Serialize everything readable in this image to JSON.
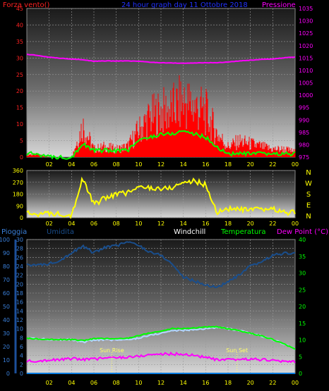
{
  "header": {
    "left": "Forza vento()",
    "center": "24 hour graph day  11 Ottobre 2018",
    "right": "Pressione"
  },
  "colors": {
    "wind": "#ff0000",
    "gust_fill": "#ff0000",
    "wind_avg": "#00ff00",
    "pressure": "#ff00ff",
    "direction": "#ffff00",
    "humidity": "#1a4e8c",
    "temperature": "#00ff00",
    "windchill": "#b0d8ff",
    "dewpoint": "#ff00ff",
    "rain": "#0a7ce0",
    "sun_lines": "#ffff66",
    "axis_left": "#ff2222",
    "axis_right": "#ff00ff",
    "axis_x": "#ffff00",
    "axis_dir": "#ffff00",
    "axis_rain": "#3a7fd8",
    "axis_hum": "#3a7fd8",
    "axis_temp": "#00ff00"
  },
  "chart_data": [
    {
      "type": "line",
      "title": "24 hour graph day  11 Ottobre 2018",
      "ylabel": "Forza vento()",
      "y2label": "Pressione",
      "ylim": [
        0,
        45
      ],
      "y2lim": [
        975,
        1035
      ],
      "yticks": [
        "0",
        "5",
        "10",
        "15",
        "20",
        "25",
        "30",
        "35",
        "40",
        "45"
      ],
      "y2ticks": [
        "975",
        "980",
        "985",
        "990",
        "995",
        "1000",
        "1005",
        "1010",
        "1015",
        "1020",
        "1025",
        "1030",
        "1035"
      ],
      "x_hours": [
        0,
        1,
        2,
        3,
        4,
        5,
        6,
        7,
        8,
        9,
        10,
        11,
        12,
        13,
        14,
        15,
        16,
        17,
        18,
        19,
        20,
        21,
        22,
        23,
        24
      ],
      "xticks": [
        "02",
        "04",
        "06",
        "08",
        "10",
        "12",
        "14",
        "16",
        "18",
        "20",
        "22",
        "00"
      ],
      "series": [
        {
          "key": "wind_gust",
          "values": [
            1,
            1,
            0,
            0,
            0,
            12,
            3,
            4,
            3,
            4,
            10,
            15,
            17,
            18,
            21,
            19,
            17,
            9,
            4,
            6,
            5,
            4,
            3,
            3,
            2
          ]
        },
        {
          "key": "wind_avg",
          "values": [
            1,
            1,
            0,
            0,
            0,
            4,
            2,
            2,
            2,
            2,
            5,
            6,
            7,
            7,
            8,
            7,
            6,
            3,
            1,
            1,
            1,
            1,
            1,
            1,
            1
          ]
        },
        {
          "key": "pressure",
          "values": [
            1016.5,
            1016,
            1015.3,
            1014.9,
            1014.6,
            1014.3,
            1013.7,
            1013.8,
            1013.8,
            1013.8,
            1013.7,
            1013.3,
            1013.1,
            1013.0,
            1012.9,
            1013.0,
            1013.1,
            1013.1,
            1013.4,
            1013.8,
            1014.1,
            1014.4,
            1014.6,
            1015.1,
            1015.4
          ]
        }
      ]
    },
    {
      "type": "line",
      "ylabel": "",
      "ylim": [
        0,
        360
      ],
      "yticks": [
        "0",
        "90",
        "180",
        "270",
        "360"
      ],
      "compass": [
        "N",
        "W",
        "S",
        "E",
        "N"
      ],
      "series": [
        {
          "key": "wind_direction",
          "values": [
            30,
            30,
            30,
            30,
            20,
            300,
            100,
            150,
            180,
            190,
            230,
            230,
            220,
            230,
            270,
            280,
            250,
            40,
            70,
            60,
            60,
            60,
            70,
            40,
            40
          ]
        }
      ]
    },
    {
      "type": "line",
      "legend": [
        "Pioggia",
        "Umidita",
        "Windchill",
        "Temperatura",
        "Dew Point (°C)"
      ],
      "ylim_rain": [
        0,
        100
      ],
      "rain_ticks": [
        "0",
        "10",
        "20",
        "30",
        "40",
        "50",
        "60",
        "70",
        "80",
        "90",
        "100"
      ],
      "ylim_hum": [
        0,
        30
      ],
      "hum_ticks": [
        "0",
        "2",
        "4",
        "6",
        "8",
        "10",
        "12",
        "14",
        "16",
        "18",
        "20",
        "22",
        "24",
        "26",
        "28",
        "30"
      ],
      "ylim_temp": [
        0,
        40
      ],
      "temp_ticks": [
        "0",
        "5",
        "10",
        "15",
        "20",
        "25",
        "30",
        "35",
        "40"
      ],
      "series": [
        {
          "key": "humidity",
          "values": [
            24.5,
            24.2,
            24.6,
            25.4,
            27.0,
            28.5,
            27.0,
            28.3,
            28.6,
            29.5,
            28.7,
            27.2,
            26.5,
            24.5,
            21.6,
            20.7,
            19.8,
            19.3,
            20.5,
            22.0,
            24.0,
            25.0,
            26.5,
            26.9,
            26.9
          ]
        },
        {
          "key": "temperature",
          "values": [
            10.5,
            10.3,
            10.2,
            10.1,
            10.1,
            9.8,
            10.4,
            10.4,
            10.3,
            10.5,
            11.3,
            12.1,
            12.6,
            13.4,
            13.4,
            13.6,
            13.9,
            13.9,
            13.3,
            12.7,
            12.0,
            11.2,
            10.1,
            8.8,
            7.2
          ]
        },
        {
          "key": "windchill",
          "values": [
            10.5,
            10.3,
            10.2,
            10.1,
            10.1,
            9.3,
            10.0,
            10.0,
            10.0,
            10.0,
            10.6,
            11.4,
            12.0,
            12.8,
            12.9,
            13.1,
            13.4,
            13.8,
            13.3,
            12.7,
            12.0,
            11.2,
            10.1,
            8.8,
            7.2
          ]
        },
        {
          "key": "dewpoint",
          "values": [
            3.7,
            3.8,
            4.0,
            4.1,
            4.4,
            4.2,
            4.3,
            4.6,
            4.7,
            4.9,
            5.1,
            5.6,
            5.8,
            5.8,
            5.7,
            5.4,
            4.8,
            4.0,
            4.0,
            4.2,
            4.3,
            4.1,
            3.9,
            3.5,
            3.5
          ]
        },
        {
          "key": "rain",
          "values": [
            0,
            0,
            0,
            0,
            0,
            0,
            0,
            0,
            0,
            0,
            0,
            0,
            0,
            0,
            0,
            0,
            0,
            0,
            0,
            0,
            0,
            0,
            0,
            0,
            0
          ]
        }
      ],
      "annotations": [
        {
          "label": "Sun Rise",
          "hour": 7.6
        },
        {
          "label": "Sun Set",
          "hour": 18.8
        }
      ]
    }
  ]
}
